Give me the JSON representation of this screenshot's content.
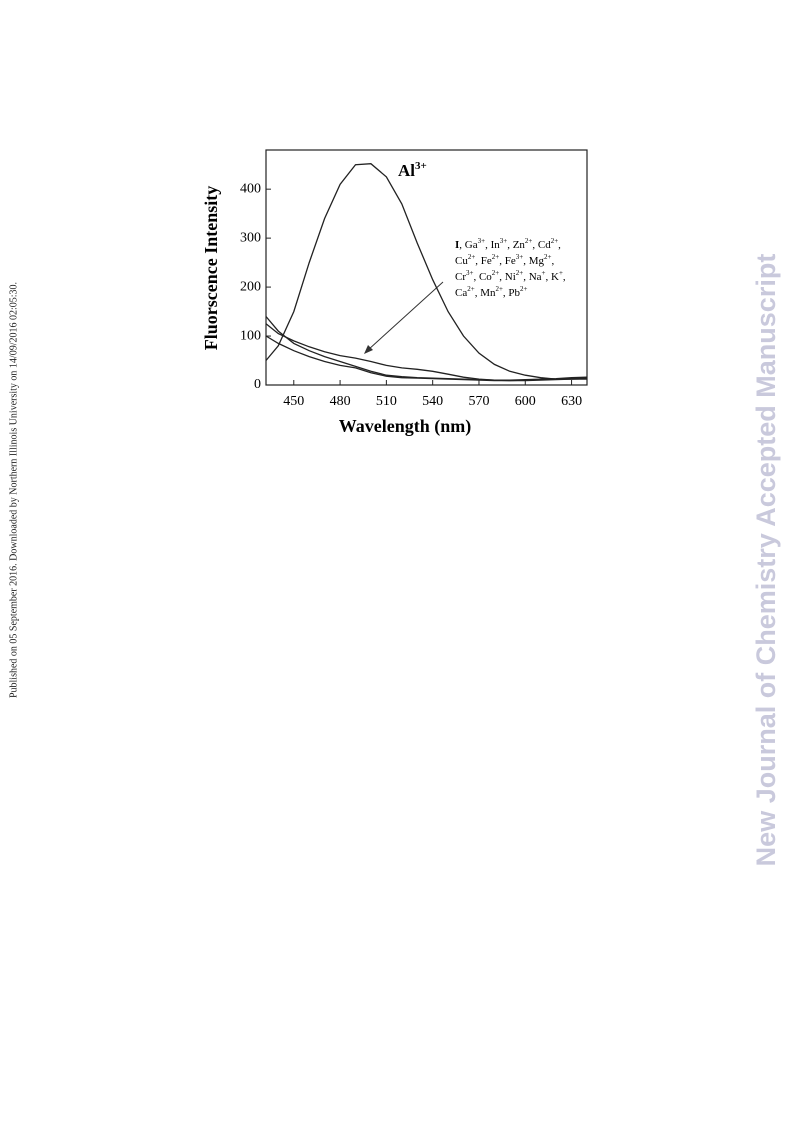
{
  "side_note": "Published on 05 September 2016. Downloaded by Northern Illinois University on 14/09/2016 02:05:30.",
  "watermark": "New Journal of Chemistry Accepted Manuscript",
  "chart_data": {
    "type": "line",
    "x_label": "Wavelength (nm)",
    "y_label": "Fluorscence Intensity",
    "x": [
      432,
      440,
      450,
      460,
      470,
      480,
      490,
      500,
      510,
      520,
      530,
      540,
      550,
      560,
      570,
      580,
      590,
      600,
      610,
      620,
      630,
      640
    ],
    "series": [
      {
        "color": "#222222",
        "values": [
          50,
          80,
          150,
          250,
          340,
          410,
          450,
          452,
          425,
          370,
          290,
          215,
          150,
          100,
          65,
          42,
          28,
          20,
          15,
          12,
          12,
          12
        ]
      },
      {
        "color": "#222222",
        "values": [
          125,
          105,
          90,
          78,
          68,
          60,
          55,
          48,
          40,
          35,
          32,
          28,
          22,
          16,
          12,
          10,
          9,
          9,
          10,
          11,
          12,
          13
        ]
      },
      {
        "color": "#222222",
        "values": [
          140,
          110,
          85,
          70,
          58,
          48,
          38,
          28,
          20,
          17,
          15,
          14,
          13,
          12,
          11,
          10,
          10,
          11,
          12,
          13,
          15,
          16
        ]
      },
      {
        "color": "#222222",
        "values": [
          100,
          85,
          70,
          58,
          48,
          40,
          35,
          25,
          18,
          15,
          14,
          13,
          12,
          11,
          10,
          9,
          9,
          10,
          11,
          12,
          13,
          14
        ]
      }
    ],
    "xlim": [
      432,
      640
    ],
    "ylim": [
      0,
      480
    ],
    "xticks": [
      450,
      480,
      510,
      540,
      570,
      600,
      630
    ],
    "yticks": [
      0,
      100,
      200,
      300,
      400
    ],
    "annotations": {
      "al": {
        "text": "Al",
        "sup": "3+"
      },
      "ions": [
        [
          {
            "text": "I"
          },
          {
            "text": ", Ga",
            "sup": "3+"
          },
          {
            "text": ", In",
            "sup": "3+"
          },
          {
            "text": ", Zn",
            "sup": "2+"
          },
          {
            "text": ", Cd",
            "sup": "2+"
          },
          {
            "text": ","
          }
        ],
        [
          {
            "text": "Cu",
            "sup": "2+"
          },
          {
            "text": ", Fe",
            "sup": "2+"
          },
          {
            "text": ", Fe",
            "sup": "3+"
          },
          {
            "text": ", Mg",
            "sup": "2+"
          },
          {
            "text": ","
          }
        ],
        [
          {
            "text": "Cr",
            "sup": "3+"
          },
          {
            "text": ", Co",
            "sup": "2+"
          },
          {
            "text": ", Ni",
            "sup": "2+"
          },
          {
            "text": ", Na",
            "sup": "+"
          },
          {
            "text": ", K",
            "sup": "+"
          },
          {
            "text": ","
          }
        ],
        [
          {
            "text": "Ca",
            "sup": "2+"
          },
          {
            "text": ", Mn",
            "sup": "2+"
          },
          {
            "text": ", Pb",
            "sup": "2+"
          }
        ]
      ]
    }
  }
}
